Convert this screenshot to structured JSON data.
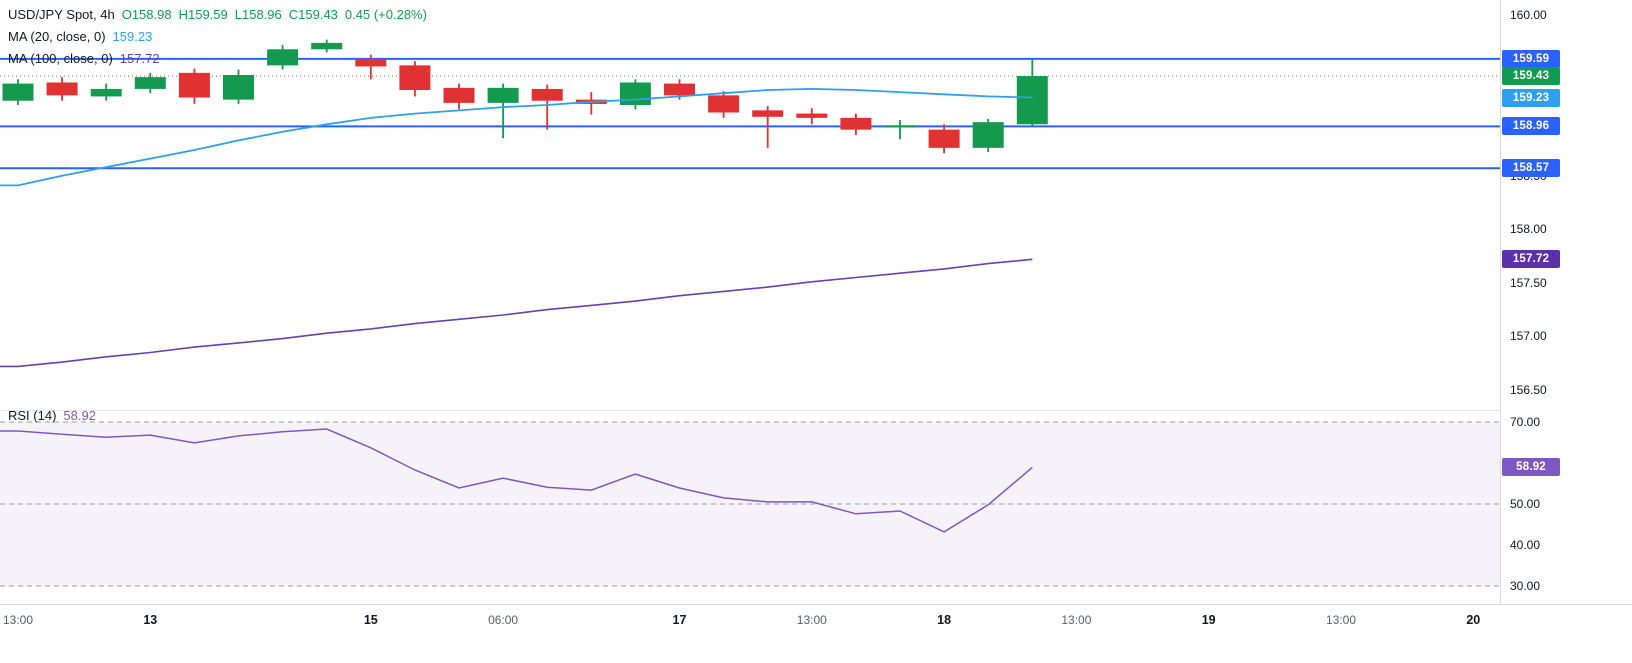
{
  "legend": {
    "symbol": "USD/JPY Spot, 4h",
    "o": "O158.98",
    "h": "H159.59",
    "l": "L158.96",
    "c": "C159.43",
    "change": "0.45 (+0.28%)",
    "ma20_label": "MA (20, close, 0)",
    "ma20_value": "159.23",
    "ma100_label": "MA (100, close, 0)",
    "ma100_value": "157.72",
    "rsi_label": "RSI (14)",
    "rsi_value": "58.92"
  },
  "colors": {
    "up": "#149a4e",
    "down": "#e03232",
    "level_blue": "#2962ff",
    "ma20": "#2f9fef",
    "ma100": "#6840b8",
    "rsi": "#7e57c2",
    "badge_close": "#149a4e",
    "badge_ma20": "#2f9fef",
    "badge_ma100": "#5c30a8",
    "badge_rsi": "#7e57c2",
    "axis_text": "#131722",
    "grid": "#e0e3eb",
    "close_dotted": "#6a6d78",
    "rsi_band_fill": "rgba(126,87,194,0.08)",
    "rsi_dash": "#9aa0ab"
  },
  "chart_data": [
    {
      "type": "candlestick",
      "panel": "main",
      "title": "USD/JPY Spot, 4h",
      "ylim": [
        156.3,
        160.14
      ],
      "yticks": [
        {
          "label": "160.00",
          "value": 160.0
        },
        {
          "label": "158.50",
          "value": 158.5
        },
        {
          "label": "158.00",
          "value": 158.0
        },
        {
          "label": "157.50",
          "value": 157.5
        },
        {
          "label": "157.00",
          "value": 157.0
        },
        {
          "label": "156.50",
          "value": 156.5
        }
      ],
      "levels": [
        159.59,
        158.96,
        158.57
      ],
      "close_line": 159.43,
      "candles": [
        {
          "o": 159.2,
          "h": 159.4,
          "l": 159.16,
          "c": 159.36
        },
        {
          "o": 159.37,
          "h": 159.42,
          "l": 159.2,
          "c": 159.25
        },
        {
          "o": 159.24,
          "h": 159.36,
          "l": 159.2,
          "c": 159.31
        },
        {
          "o": 159.31,
          "h": 159.46,
          "l": 159.27,
          "c": 159.42
        },
        {
          "o": 159.46,
          "h": 159.5,
          "l": 159.17,
          "c": 159.23
        },
        {
          "o": 159.21,
          "h": 159.49,
          "l": 159.17,
          "c": 159.44
        },
        {
          "o": 159.53,
          "h": 159.72,
          "l": 159.49,
          "c": 159.68
        },
        {
          "o": 159.68,
          "h": 159.77,
          "l": 159.65,
          "c": 159.74
        },
        {
          "o": 159.59,
          "h": 159.63,
          "l": 159.4,
          "c": 159.52
        },
        {
          "o": 159.53,
          "h": 159.57,
          "l": 159.24,
          "c": 159.3
        },
        {
          "o": 159.32,
          "h": 159.36,
          "l": 159.12,
          "c": 159.18
        },
        {
          "o": 159.18,
          "h": 159.36,
          "l": 158.85,
          "c": 159.32
        },
        {
          "o": 159.31,
          "h": 159.35,
          "l": 158.93,
          "c": 159.2
        },
        {
          "o": 159.21,
          "h": 159.28,
          "l": 159.07,
          "c": 159.17
        },
        {
          "o": 159.16,
          "h": 159.4,
          "l": 159.12,
          "c": 159.37
        },
        {
          "o": 159.36,
          "h": 159.4,
          "l": 159.21,
          "c": 159.25
        },
        {
          "o": 159.25,
          "h": 159.29,
          "l": 159.04,
          "c": 159.09
        },
        {
          "o": 159.11,
          "h": 159.15,
          "l": 158.76,
          "c": 159.05
        },
        {
          "o": 159.08,
          "h": 159.13,
          "l": 158.98,
          "c": 159.04
        },
        {
          "o": 159.04,
          "h": 159.08,
          "l": 158.88,
          "c": 158.93
        },
        {
          "o": 158.95,
          "h": 159.02,
          "l": 158.84,
          "c": 158.97
        },
        {
          "o": 158.93,
          "h": 158.98,
          "l": 158.71,
          "c": 158.76
        },
        {
          "o": 158.76,
          "h": 159.03,
          "l": 158.72,
          "c": 159.0
        },
        {
          "o": 158.98,
          "h": 159.59,
          "l": 158.96,
          "c": 159.43
        }
      ],
      "series": [
        {
          "name": "MA20",
          "values": [
            158.41,
            158.5,
            158.58,
            158.66,
            158.74,
            158.83,
            158.91,
            158.98,
            159.04,
            159.08,
            159.11,
            159.14,
            159.16,
            159.19,
            159.21,
            159.24,
            159.27,
            159.3,
            159.31,
            159.3,
            159.28,
            159.26,
            159.24,
            159.23
          ]
        },
        {
          "name": "MA100",
          "values": [
            156.72,
            156.76,
            156.81,
            156.85,
            156.9,
            156.94,
            156.98,
            157.03,
            157.07,
            157.12,
            157.16,
            157.2,
            157.25,
            157.29,
            157.33,
            157.38,
            157.42,
            157.46,
            157.51,
            157.55,
            157.59,
            157.63,
            157.68,
            157.72
          ]
        }
      ],
      "badges": [
        {
          "label": "159.59",
          "value": 159.59,
          "color_key": "level_blue"
        },
        {
          "label": "159.43",
          "value": 159.43,
          "color_key": "badge_close"
        },
        {
          "label": "159.23",
          "value": 159.23,
          "color_key": "badge_ma20"
        },
        {
          "label": "158.96",
          "value": 158.96,
          "color_key": "level_blue"
        },
        {
          "label": "158.57",
          "value": 158.57,
          "color_key": "level_blue"
        },
        {
          "label": "157.72",
          "value": 157.72,
          "color_key": "badge_ma100"
        }
      ]
    },
    {
      "type": "line",
      "panel": "rsi",
      "name": "RSI (14)",
      "ylim": [
        26,
        72
      ],
      "yticks": [
        {
          "label": "70.00",
          "value": 70
        },
        {
          "label": "50.00",
          "value": 50
        },
        {
          "label": "40.00",
          "value": 40
        },
        {
          "label": "30.00",
          "value": 30
        }
      ],
      "band": [
        30,
        70
      ],
      "dashed_levels": [
        70,
        50,
        30
      ],
      "values": [
        67.8,
        67.0,
        66.3,
        66.8,
        64.9,
        66.6,
        67.6,
        68.3,
        63.7,
        58.3,
        53.9,
        56.3,
        54.1,
        53.4,
        57.3,
        53.9,
        51.5,
        50.5,
        50.5,
        47.6,
        48.3,
        43.2,
        49.8,
        58.92
      ],
      "badge": {
        "label": "58.92",
        "value": 58.92,
        "color_key": "badge_rsi"
      }
    }
  ],
  "time_axis": [
    {
      "label": "13:00",
      "idx": 0,
      "bold": false
    },
    {
      "label": "13",
      "idx": 3,
      "bold": true
    },
    {
      "label": "15",
      "idx": 8,
      "bold": true
    },
    {
      "label": "06:00",
      "idx": 11,
      "bold": false
    },
    {
      "label": "17",
      "idx": 15,
      "bold": true
    },
    {
      "label": "13:00",
      "idx": 18,
      "bold": false
    },
    {
      "label": "18",
      "idx": 21,
      "bold": true
    },
    {
      "label": "13:00",
      "idx": 24,
      "bold": false
    },
    {
      "label": "19",
      "idx": 27,
      "bold": true
    },
    {
      "label": "13:00",
      "idx": 30,
      "bold": false
    },
    {
      "label": "20",
      "idx": 33,
      "bold": true
    }
  ]
}
